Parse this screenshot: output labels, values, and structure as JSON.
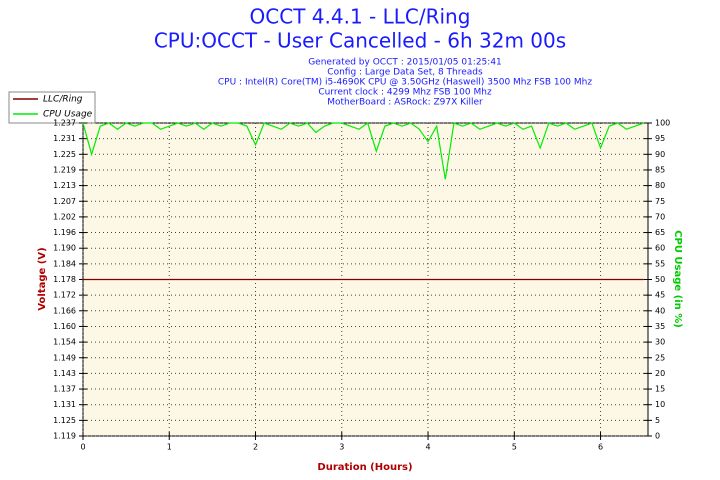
{
  "chart_data": {
    "type": "line",
    "title": "OCCT 4.4.1 - LLC/Ring",
    "subtitle": "CPU:OCCT - User Cancelled - 6h 32m 00s",
    "info_lines": [
      "Generated by OCCT : 2015/01/05 01:25:41",
      "Config : Large Data Set, 8 Threads",
      "CPU : Intel(R) Core(TM) i5-4690K CPU @ 3.50GHz (Haswell) 3500 Mhz FSB 100 Mhz",
      "Current clock : 4299 Mhz FSB 100 Mhz",
      "MotherBoard : ASRock: Z97X Killer"
    ],
    "x_label": "Duration (Hours)",
    "y_label": "Voltage (V)",
    "y2_label": "CPU Usage (in %)",
    "xlim": [
      0,
      6.55
    ],
    "xticks": [
      0,
      1,
      2,
      3,
      4,
      5,
      6
    ],
    "ylim": [
      1.119,
      1.237
    ],
    "yticks": [
      1.119,
      {
        "value": 1.1249,
        "label": "1.125"
      },
      {
        "value": 1.1308,
        "label": "1.131"
      },
      {
        "value": 1.1367,
        "label": "1.137"
      },
      {
        "value": 1.1426,
        "label": "1.143"
      },
      {
        "value": 1.1485,
        "label": "1.149"
      },
      {
        "value": 1.1544,
        "label": "1.154"
      },
      {
        "value": 1.1603,
        "label": "1.160"
      },
      {
        "value": 1.1662,
        "label": "1.166"
      },
      {
        "value": 1.1721,
        "label": "1.172"
      },
      1.178,
      {
        "value": 1.1839,
        "label": "1.184"
      },
      {
        "value": 1.1898,
        "label": "1.190"
      },
      {
        "value": 1.1957,
        "label": "1.196"
      },
      {
        "value": 1.2016,
        "label": "1.202"
      },
      {
        "value": 1.2075,
        "label": "1.207"
      },
      {
        "value": 1.2134,
        "label": "1.213"
      },
      {
        "value": 1.2193,
        "label": "1.219"
      },
      {
        "value": 1.2252,
        "label": "1.225"
      },
      {
        "value": 1.2311,
        "label": "1.231"
      },
      1.237
    ],
    "y2lim": [
      0,
      100
    ],
    "y2ticks": [
      0,
      5,
      10,
      15,
      20,
      25,
      30,
      35,
      40,
      45,
      50,
      55,
      60,
      65,
      70,
      75,
      80,
      85,
      90,
      95,
      100
    ],
    "grid": true,
    "x": [
      0,
      0.1,
      0.2,
      0.3,
      0.4,
      0.5,
      0.6,
      0.7,
      0.8,
      0.9,
      1,
      1.1,
      1.2,
      1.3,
      1.4,
      1.5,
      1.6,
      1.7,
      1.8,
      1.9,
      2,
      2.1,
      2.2,
      2.3,
      2.4,
      2.5,
      2.6,
      2.7,
      2.8,
      2.9,
      3,
      3.1,
      3.2,
      3.3,
      3.4,
      3.5,
      3.6,
      3.7,
      3.8,
      3.9,
      4,
      4.1,
      4.2,
      4.3,
      4.4,
      4.5,
      4.6,
      4.7,
      4.8,
      4.9,
      5,
      5.1,
      5.2,
      5.3,
      5.4,
      5.5,
      5.6,
      5.7,
      5.8,
      5.9,
      6,
      6.1,
      6.2,
      6.3,
      6.4,
      6.5
    ],
    "series": [
      {
        "name": "LLC/Ring",
        "color": "#800000",
        "values": [
          1.178,
          1.178,
          1.178,
          1.178,
          1.178,
          1.178,
          1.178,
          1.178,
          1.178,
          1.178,
          1.178,
          1.178,
          1.178,
          1.178,
          1.178,
          1.178,
          1.178,
          1.178,
          1.178,
          1.178,
          1.178,
          1.178,
          1.178,
          1.178,
          1.178,
          1.178,
          1.178,
          1.178,
          1.178,
          1.178,
          1.178,
          1.178,
          1.178,
          1.178,
          1.178,
          1.178,
          1.178,
          1.178,
          1.178,
          1.178,
          1.178,
          1.178,
          1.178,
          1.178,
          1.178,
          1.178,
          1.178,
          1.178,
          1.178,
          1.178,
          1.178,
          1.178,
          1.178,
          1.178,
          1.178,
          1.178,
          1.178,
          1.178,
          1.178,
          1.178,
          1.178,
          1.178,
          1.178,
          1.178,
          1.178,
          1.178
        ]
      },
      {
        "name": "CPU Usage",
        "color": "#00ee00",
        "axis": "y2",
        "values": [
          100,
          90,
          99,
          100,
          98,
          100,
          99,
          100,
          100,
          98,
          99,
          100,
          99,
          100,
          98,
          100,
          99,
          100,
          100,
          99,
          93,
          100,
          99,
          98,
          100,
          99,
          100,
          97,
          99,
          100,
          100,
          99,
          98,
          100,
          91,
          99,
          100,
          99,
          100,
          98,
          94,
          99,
          82,
          100,
          99,
          100,
          98,
          99,
          100,
          99,
          100,
          98,
          99,
          92,
          100,
          99,
          100,
          98,
          99,
          100,
          92,
          99,
          100,
          98,
          99,
          100
        ]
      }
    ]
  }
}
